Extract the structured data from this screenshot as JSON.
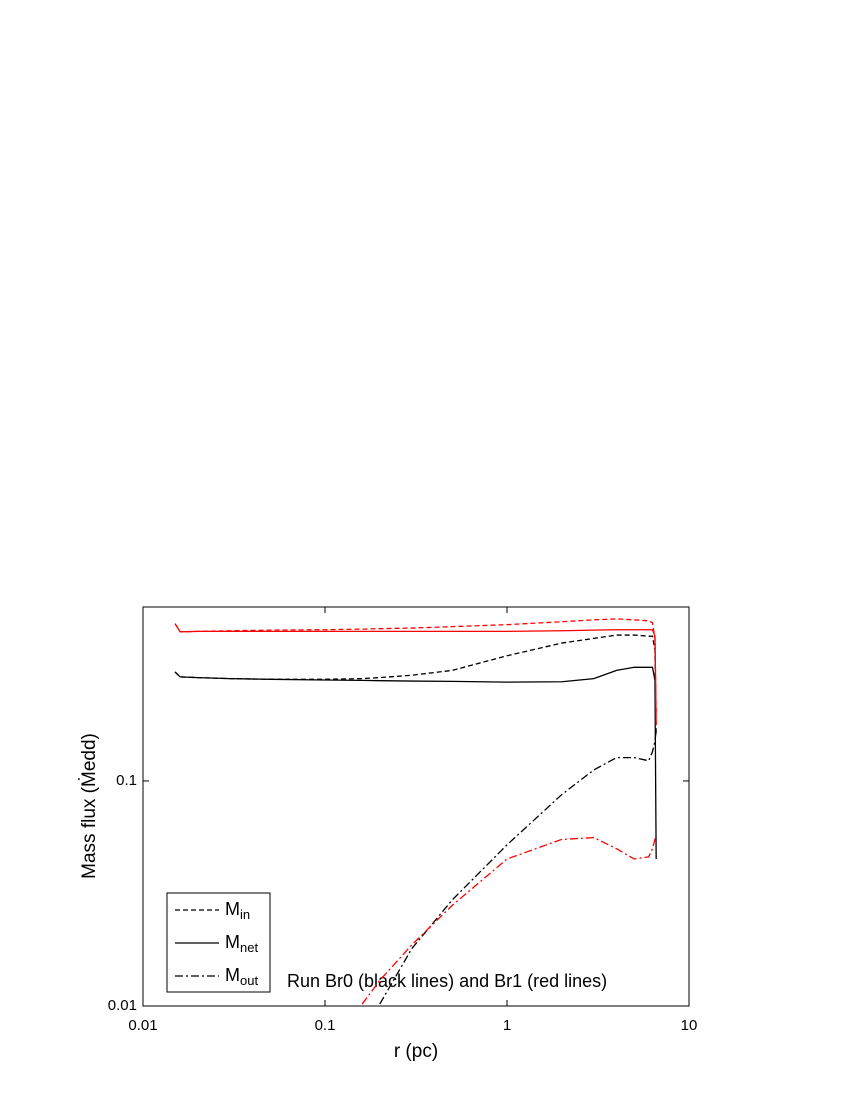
{
  "chart_data": {
    "type": "line",
    "xlabel": "r (pc)",
    "ylabel": "Mass flux (Ṁedd)",
    "annotation": "Run Br0 (black lines) and Br1 (red lines)",
    "xscale": "log",
    "yscale": "log",
    "xlim": [
      0.01,
      10
    ],
    "ylim": [
      0.01,
      0.593
    ],
    "xticks": [
      0.01,
      0.1,
      1,
      10
    ],
    "yticks": [
      0.01,
      0.1
    ],
    "x": [
      0.015,
      0.016,
      0.02,
      0.03,
      0.05,
      0.1,
      0.16,
      0.2,
      0.3,
      0.5,
      1,
      2,
      3,
      4,
      5,
      6,
      6.3,
      6.5,
      6.6
    ],
    "series": [
      {
        "name": "Min",
        "color": "#000000",
        "dash": "dashed",
        "values": [
          0.305,
          0.29,
          0.288,
          0.285,
          0.283,
          0.283,
          0.285,
          0.288,
          0.295,
          0.31,
          0.36,
          0.41,
          0.43,
          0.445,
          0.445,
          0.44,
          0.44,
          0.38,
          0.16
        ]
      },
      {
        "name": "Mnet",
        "color": "#000000",
        "dash": "solid",
        "values": [
          0.305,
          0.29,
          0.288,
          0.285,
          0.283,
          0.281,
          0.28,
          0.279,
          0.278,
          0.277,
          0.275,
          0.276,
          0.285,
          0.31,
          0.32,
          0.32,
          0.32,
          0.28,
          0.045
        ]
      },
      {
        "name": "Mout",
        "color": "#000000",
        "dash": "dashdot",
        "values": [
          null,
          null,
          null,
          null,
          null,
          null,
          null,
          0.0102,
          0.018,
          0.0296,
          0.052,
          0.087,
          0.112,
          0.127,
          0.127,
          0.123,
          0.135,
          0.15,
          0.168
        ]
      },
      {
        "name": "Min",
        "color": "#ff0000",
        "dash": "dashed",
        "values": [
          0.5,
          0.46,
          0.462,
          0.465,
          0.468,
          0.47,
          0.473,
          0.475,
          0.478,
          0.485,
          0.495,
          0.51,
          0.52,
          0.525,
          0.52,
          0.515,
          0.505,
          0.43,
          0.2
        ]
      },
      {
        "name": "Mnet",
        "color": "#ff0000",
        "dash": "solid",
        "values": [
          0.5,
          0.46,
          0.462,
          0.462,
          0.462,
          0.462,
          0.462,
          0.462,
          0.462,
          0.462,
          0.462,
          0.465,
          0.468,
          0.47,
          0.47,
          0.47,
          0.47,
          0.44,
          0.177
        ]
      },
      {
        "name": "Mout",
        "color": "#ff0000",
        "dash": "dashdot",
        "values": [
          null,
          null,
          null,
          null,
          null,
          null,
          0.0102,
          0.013,
          0.0187,
          0.028,
          0.045,
          0.055,
          0.056,
          0.05,
          0.045,
          0.046,
          0.05,
          0.055,
          0.057
        ]
      }
    ],
    "legend": "lower left"
  }
}
